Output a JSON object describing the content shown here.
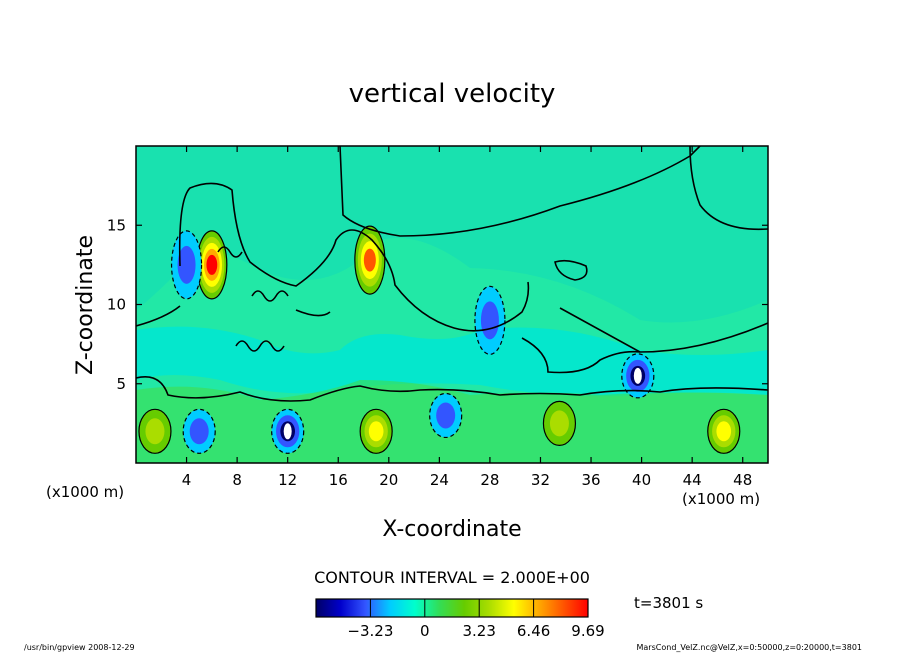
{
  "chart_data": {
    "type": "heatmap",
    "title": "vertical velocity",
    "xlabel": "X-coordinate",
    "ylabel": "Z-coordinate",
    "x_unit_left": "(x1000 m)",
    "x_unit_right": "(x1000 m)",
    "xlim": [
      0,
      50
    ],
    "ylim": [
      0,
      20
    ],
    "x_ticks": [
      "4",
      "8",
      "12",
      "16",
      "20",
      "24",
      "28",
      "32",
      "36",
      "40",
      "44",
      "48"
    ],
    "y_ticks": [
      "5",
      "10",
      "15"
    ],
    "contour_interval_text": "CONTOUR INTERVAL = 2.000E+00",
    "time_text": "t=3801 s",
    "colorbar": {
      "min": -6.46,
      "max": 9.69,
      "tick_labels": [
        "-3.23",
        "0",
        "3.23",
        "6.46",
        "9.69"
      ],
      "colors": [
        "#000066",
        "#0000cc",
        "#3355ff",
        "#00ccff",
        "#00ffcc",
        "#33dd55",
        "#66cc00",
        "#aadd00",
        "#ffff00",
        "#ffaa00",
        "#ff5500",
        "#ff0000"
      ]
    },
    "features": [
      {
        "kind": "updraft",
        "x": 6,
        "z": 12.5,
        "w": 9
      },
      {
        "kind": "updraft",
        "x": 18.5,
        "z": 12.8,
        "w": 8
      },
      {
        "kind": "updraft",
        "x": 19,
        "z": 2,
        "w": 6
      },
      {
        "kind": "updraft",
        "x": 1.5,
        "z": 2,
        "w": 4
      },
      {
        "kind": "updraft",
        "x": 46.5,
        "z": 2,
        "w": 5
      },
      {
        "kind": "updraft",
        "x": 33.5,
        "z": 2.5,
        "w": 4
      },
      {
        "kind": "downdraft",
        "x": 12,
        "z": 2,
        "w": -6
      },
      {
        "kind": "downdraft",
        "x": 5,
        "z": 2,
        "w": -4
      },
      {
        "kind": "downdraft",
        "x": 39.7,
        "z": 5.5,
        "w": -6
      },
      {
        "kind": "downdraft",
        "x": 24.5,
        "z": 3,
        "w": -3
      },
      {
        "kind": "downdraft",
        "x": 4,
        "z": 12.5,
        "w": -3
      },
      {
        "kind": "downdraft",
        "x": 28,
        "z": 9,
        "w": -3
      }
    ]
  },
  "footer": {
    "left": "/usr/bin/gpview   2008-12-29",
    "right": "MarsCond_VelZ.nc@VelZ,x=0:50000,z=0:20000,t=3801"
  }
}
